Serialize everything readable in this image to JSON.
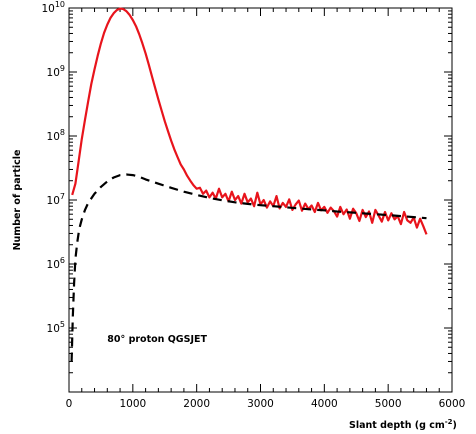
{
  "chart_data": {
    "type": "line",
    "title": "",
    "xlabel": "Slant depth (g cm",
    "xlabel_sup": "-2",
    "xlabel_close": ")",
    "ylabel": "Number of particle",
    "xlim": [
      0,
      6000
    ],
    "ylog": true,
    "ylim": [
      10000,
      10000000000
    ],
    "grid": false,
    "x_ticks": [
      0,
      1000,
      2000,
      3000,
      4000,
      5000,
      6000
    ],
    "y_ticks": [
      {
        "value": 100000,
        "base": "10",
        "exp": "5"
      },
      {
        "value": 1000000,
        "base": "10",
        "exp": "6"
      },
      {
        "value": 10000000,
        "base": "10",
        "exp": "7"
      },
      {
        "value": 100000000,
        "base": "10",
        "exp": "8"
      },
      {
        "value": 1000000000,
        "base": "10",
        "exp": "9"
      },
      {
        "value": 10000000000,
        "base": "10",
        "exp": "10"
      }
    ],
    "annotations": [
      {
        "text": "80° proton QGSJET",
        "x": 600,
        "y": 60000
      }
    ],
    "series": [
      {
        "color": "#e8141c",
        "style": "solid",
        "x": [
          50,
          100,
          150,
          200,
          250,
          300,
          350,
          400,
          450,
          500,
          550,
          600,
          650,
          700,
          750,
          800,
          850,
          900,
          950,
          1000,
          1050,
          1100,
          1150,
          1200,
          1250,
          1300,
          1350,
          1400,
          1450,
          1500,
          1550,
          1600,
          1650,
          1700,
          1750,
          1800,
          1850,
          1900,
          1950,
          2000,
          2050,
          2100,
          2150,
          2200,
          2250,
          2300,
          2350,
          2400,
          2450,
          2500,
          2550,
          2600,
          2650,
          2700,
          2750,
          2800,
          2850,
          2900,
          2950,
          3000,
          3050,
          3100,
          3150,
          3200,
          3250,
          3300,
          3350,
          3400,
          3450,
          3500,
          3550,
          3600,
          3650,
          3700,
          3750,
          3800,
          3850,
          3900,
          3950,
          4000,
          4050,
          4100,
          4150,
          4200,
          4250,
          4300,
          4350,
          4400,
          4450,
          4500,
          4550,
          4600,
          4650,
          4700,
          4750,
          4800,
          4850,
          4900,
          4950,
          5000,
          5050,
          5100,
          5150,
          5200,
          5250,
          5300,
          5350,
          5400,
          5450,
          5500,
          5550,
          5600
        ],
        "values": [
          12000000,
          18000000,
          40000000,
          90000000,
          180000000,
          350000000,
          650000000,
          1100000000,
          1800000000,
          2800000000,
          4100000000,
          5500000000,
          7000000000,
          8300000000,
          9300000000,
          9800000000,
          9600000000,
          8900000000,
          7800000000,
          6500000000,
          5200000000,
          3900000000,
          2800000000,
          1950000000,
          1300000000,
          850000000,
          560000000,
          370000000,
          250000000,
          170000000,
          120000000,
          85000000,
          62000000,
          47000000,
          36000000,
          30000000,
          24000000,
          20000000,
          17000000,
          15000000,
          15500000,
          12500000,
          14000000,
          11000000,
          13000000,
          10500000,
          15000000,
          11000000,
          12500000,
          9500000,
          13500000,
          10000000,
          11500000,
          8800000,
          12500000,
          9200000,
          10500000,
          8000000,
          13000000,
          8500000,
          10000000,
          7600000,
          9500000,
          8000000,
          11500000,
          7400000,
          9000000,
          7800000,
          10200000,
          7000000,
          8500000,
          9800000,
          6800000,
          8800000,
          7200000,
          8200000,
          6500000,
          9000000,
          6900000,
          7800000,
          6300000,
          7600000,
          6700000,
          5500000,
          7800000,
          6000000,
          7100000,
          5100000,
          7300000,
          6200000,
          4700000,
          7000000,
          5400000,
          6600000,
          4400000,
          7000000,
          5700000,
          4600000,
          6500000,
          4800000,
          6200000,
          5000000,
          5600000,
          4200000,
          6500000,
          4800000,
          4400000,
          5300000,
          3700000,
          5100000,
          3900000,
          2900000
        ]
      },
      {
        "color": "#000000",
        "style": "dashed",
        "x": [
          40,
          60,
          80,
          100,
          130,
          160,
          200,
          250,
          300,
          400,
          500,
          600,
          700,
          800,
          900,
          1000,
          1100,
          1200,
          1400,
          1600,
          1800,
          2000,
          2200,
          2400,
          2600,
          2800,
          3000,
          3200,
          3400,
          3600,
          3800,
          4000,
          4200,
          4400,
          4600,
          4800,
          5000,
          5200,
          5400,
          5600
        ],
        "values": [
          30000,
          150000,
          500000,
          1200000,
          2200000,
          3500000,
          5000000,
          7000000,
          9000000,
          12500000,
          16000000,
          19500000,
          22500000,
          24500000,
          25000000,
          24500000,
          23000000,
          21000000,
          18000000,
          15500000,
          13500000,
          12000000,
          10800000,
          9900000,
          9200000,
          8700000,
          8300000,
          8000000,
          7700000,
          7400000,
          7100000,
          6900000,
          6600000,
          6400000,
          6200000,
          6000000,
          5800000,
          5600000,
          5400000,
          5200000
        ]
      }
    ]
  }
}
